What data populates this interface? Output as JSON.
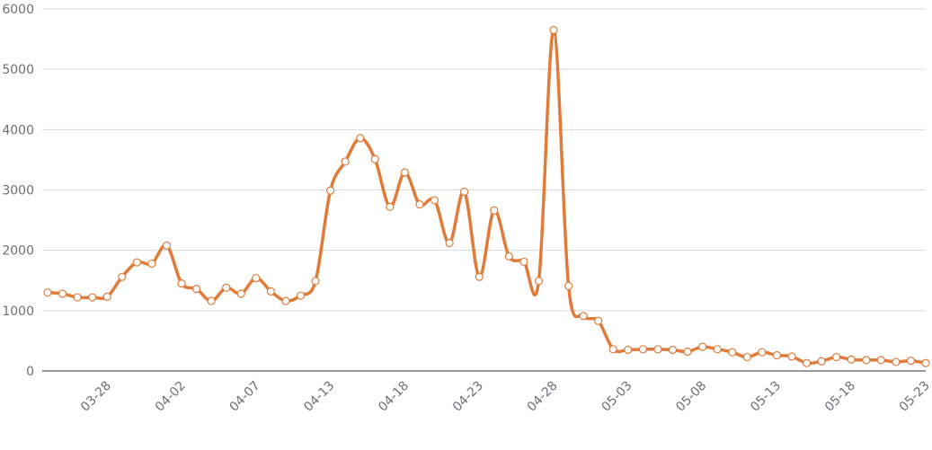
{
  "chart_data": {
    "type": "line",
    "title": "",
    "xlabel": "",
    "ylabel": "",
    "ylim": [
      0,
      6000
    ],
    "yticks": [
      "0",
      "1000",
      "2000",
      "3000",
      "4000",
      "5000",
      "6000"
    ],
    "xtick_labels": [
      "03-28",
      "04-02",
      "04-07",
      "04-13",
      "04-18",
      "04-23",
      "04-28",
      "05-03",
      "05-08",
      "05-13",
      "05-18",
      "05-23"
    ],
    "grid": true,
    "series_color": "#e07b39",
    "series": [
      {
        "values": [
          1300,
          1280,
          1220,
          1220,
          1230,
          1560,
          1800,
          1780,
          2080,
          1450,
          1360,
          1160,
          1380,
          1280,
          1540,
          1320,
          1160,
          1250,
          1490,
          2990,
          3470,
          3860,
          3510,
          2720,
          3290,
          2760,
          2830,
          2120,
          2970,
          1560,
          2660,
          1900,
          1810,
          1490,
          5650,
          1410,
          910,
          830,
          360,
          350,
          360,
          360,
          350,
          320,
          400,
          360,
          310,
          230,
          310,
          260,
          240,
          130,
          160,
          230,
          190,
          180,
          180,
          150,
          170,
          130
        ]
      }
    ]
  }
}
